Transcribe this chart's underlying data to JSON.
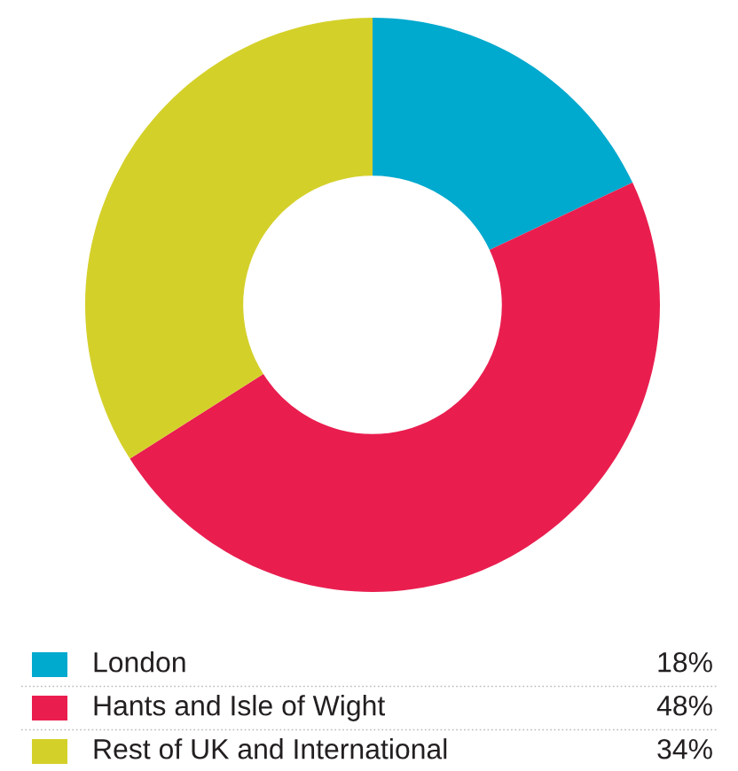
{
  "chart_data": {
    "type": "donut",
    "categories": [
      "London",
      "Hants and Isle of Wight",
      "Rest of UK and International"
    ],
    "values": [
      18,
      48,
      34
    ],
    "colors": [
      "#00a9ce",
      "#e91e4f",
      "#d4d02a"
    ],
    "value_labels": [
      "18%",
      "48%",
      "34%"
    ],
    "legend": "bottom"
  }
}
